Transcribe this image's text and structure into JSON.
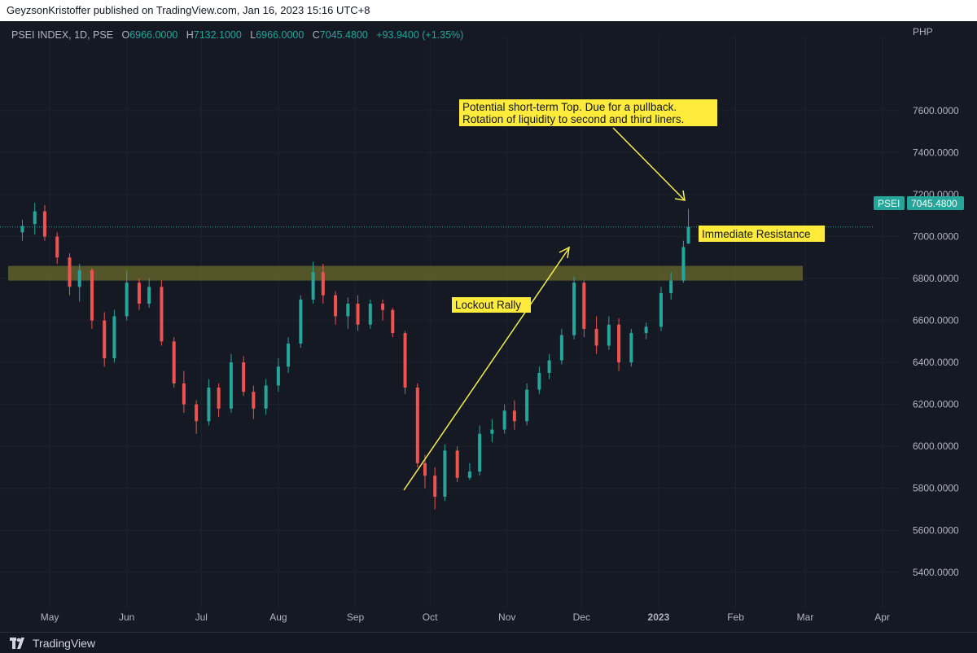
{
  "header": {
    "published_line": "GeyzsonKristoffer published on TradingView.com, Jan 16, 2023 15:16 UTC+8"
  },
  "symbol": {
    "name": "PSEI INDEX, 1D, PSE",
    "o_label": "O",
    "o_value": "6966.0000",
    "h_label": "H",
    "h_value": "7132.1000",
    "l_label": "L",
    "l_value": "6966.0000",
    "c_label": "C",
    "c_value": "7045.4800",
    "change": "+93.9400 (+1.35%)",
    "currency": "PHP"
  },
  "price_tag": {
    "ticker": "PSEI",
    "value": "7045.4800"
  },
  "annotations": {
    "top_note_line1": "Potential short-term Top. Due for a pullback.",
    "top_note_line2": "Rotation of liquidity to second and third liners.",
    "lockout": "Lockout Rally",
    "resistance": "Immediate Resistance"
  },
  "footer": {
    "brand": "TradingView"
  },
  "colors": {
    "up": "#26a69a",
    "down": "#ef5350",
    "zone": "#6b6a2c",
    "note_bg": "#ffeb3b",
    "arrow": "#f5f050",
    "grid": "#1e222d"
  },
  "chart_data": {
    "type": "candlestick",
    "title": "",
    "xlabel": "",
    "ylabel": "",
    "x_ticks": [
      "May",
      "Jun",
      "Jul",
      "Aug",
      "Sep",
      "Oct",
      "Nov",
      "Dec",
      "2023",
      "Feb",
      "Mar",
      "Apr"
    ],
    "y_ticks": [
      "7600.0000",
      "7400.0000",
      "7200.0000",
      "7000.0000",
      "6800.0000",
      "6600.0000",
      "6400.0000",
      "6200.0000",
      "6000.0000",
      "5800.0000",
      "5600.0000",
      "5400.0000"
    ],
    "ylim": [
      5310,
      7910
    ],
    "last_price": 7045.48,
    "resistance_zone": [
      6790,
      6860
    ],
    "grid": true,
    "series": [
      {
        "date": "2022-04-20",
        "o": 7020,
        "h": 7080,
        "l": 6980,
        "c": 7050
      },
      {
        "date": "2022-04-25",
        "o": 7060,
        "h": 7160,
        "l": 7010,
        "c": 7120
      },
      {
        "date": "2022-04-29",
        "o": 7120,
        "h": 7150,
        "l": 6980,
        "c": 7000
      },
      {
        "date": "2022-05-04",
        "o": 7000,
        "h": 7020,
        "l": 6870,
        "c": 6900
      },
      {
        "date": "2022-05-09",
        "o": 6900,
        "h": 6920,
        "l": 6720,
        "c": 6760
      },
      {
        "date": "2022-05-13",
        "o": 6760,
        "h": 6870,
        "l": 6690,
        "c": 6840
      },
      {
        "date": "2022-05-18",
        "o": 6840,
        "h": 6850,
        "l": 6560,
        "c": 6600
      },
      {
        "date": "2022-05-23",
        "o": 6600,
        "h": 6640,
        "l": 6380,
        "c": 6420
      },
      {
        "date": "2022-05-27",
        "o": 6420,
        "h": 6650,
        "l": 6400,
        "c": 6620
      },
      {
        "date": "2022-06-01",
        "o": 6620,
        "h": 6840,
        "l": 6600,
        "c": 6780
      },
      {
        "date": "2022-06-06",
        "o": 6780,
        "h": 6800,
        "l": 6650,
        "c": 6680
      },
      {
        "date": "2022-06-10",
        "o": 6680,
        "h": 6800,
        "l": 6660,
        "c": 6760
      },
      {
        "date": "2022-06-15",
        "o": 6760,
        "h": 6790,
        "l": 6480,
        "c": 6500
      },
      {
        "date": "2022-06-20",
        "o": 6500,
        "h": 6520,
        "l": 6280,
        "c": 6300
      },
      {
        "date": "2022-06-24",
        "o": 6300,
        "h": 6360,
        "l": 6160,
        "c": 6200
      },
      {
        "date": "2022-06-29",
        "o": 6200,
        "h": 6220,
        "l": 6060,
        "c": 6120
      },
      {
        "date": "2022-07-04",
        "o": 6120,
        "h": 6320,
        "l": 6100,
        "c": 6280
      },
      {
        "date": "2022-07-08",
        "o": 6280,
        "h": 6300,
        "l": 6140,
        "c": 6180
      },
      {
        "date": "2022-07-13",
        "o": 6180,
        "h": 6440,
        "l": 6160,
        "c": 6400
      },
      {
        "date": "2022-07-18",
        "o": 6400,
        "h": 6430,
        "l": 6240,
        "c": 6260
      },
      {
        "date": "2022-07-22",
        "o": 6260,
        "h": 6290,
        "l": 6130,
        "c": 6180
      },
      {
        "date": "2022-07-27",
        "o": 6180,
        "h": 6320,
        "l": 6150,
        "c": 6290
      },
      {
        "date": "2022-08-01",
        "o": 6290,
        "h": 6420,
        "l": 6260,
        "c": 6380
      },
      {
        "date": "2022-08-05",
        "o": 6380,
        "h": 6520,
        "l": 6350,
        "c": 6490
      },
      {
        "date": "2022-08-10",
        "o": 6490,
        "h": 6720,
        "l": 6470,
        "c": 6700
      },
      {
        "date": "2022-08-15",
        "o": 6700,
        "h": 6880,
        "l": 6680,
        "c": 6830
      },
      {
        "date": "2022-08-19",
        "o": 6830,
        "h": 6870,
        "l": 6680,
        "c": 6720
      },
      {
        "date": "2022-08-24",
        "o": 6720,
        "h": 6740,
        "l": 6580,
        "c": 6620
      },
      {
        "date": "2022-08-29",
        "o": 6620,
        "h": 6710,
        "l": 6560,
        "c": 6680
      },
      {
        "date": "2022-09-02",
        "o": 6680,
        "h": 6720,
        "l": 6550,
        "c": 6580
      },
      {
        "date": "2022-09-07",
        "o": 6580,
        "h": 6700,
        "l": 6560,
        "c": 6680
      },
      {
        "date": "2022-09-12",
        "o": 6680,
        "h": 6700,
        "l": 6600,
        "c": 6650
      },
      {
        "date": "2022-09-16",
        "o": 6650,
        "h": 6660,
        "l": 6520,
        "c": 6540
      },
      {
        "date": "2022-09-21",
        "o": 6540,
        "h": 6550,
        "l": 6250,
        "c": 6280
      },
      {
        "date": "2022-09-26",
        "o": 6280,
        "h": 6300,
        "l": 5900,
        "c": 5920
      },
      {
        "date": "2022-09-29",
        "o": 5920,
        "h": 5960,
        "l": 5800,
        "c": 5860
      },
      {
        "date": "2022-10-03",
        "o": 5860,
        "h": 5900,
        "l": 5700,
        "c": 5760
      },
      {
        "date": "2022-10-07",
        "o": 5760,
        "h": 6010,
        "l": 5740,
        "c": 5980
      },
      {
        "date": "2022-10-12",
        "o": 5980,
        "h": 6000,
        "l": 5830,
        "c": 5850
      },
      {
        "date": "2022-10-17",
        "o": 5850,
        "h": 5920,
        "l": 5840,
        "c": 5880
      },
      {
        "date": "2022-10-21",
        "o": 5880,
        "h": 6100,
        "l": 5860,
        "c": 6060
      },
      {
        "date": "2022-10-26",
        "o": 6060,
        "h": 6130,
        "l": 6020,
        "c": 6080
      },
      {
        "date": "2022-10-31",
        "o": 6080,
        "h": 6200,
        "l": 6060,
        "c": 6170
      },
      {
        "date": "2022-11-04",
        "o": 6170,
        "h": 6220,
        "l": 6080,
        "c": 6120
      },
      {
        "date": "2022-11-09",
        "o": 6120,
        "h": 6300,
        "l": 6100,
        "c": 6270
      },
      {
        "date": "2022-11-14",
        "o": 6270,
        "h": 6380,
        "l": 6250,
        "c": 6350
      },
      {
        "date": "2022-11-18",
        "o": 6350,
        "h": 6440,
        "l": 6320,
        "c": 6410
      },
      {
        "date": "2022-11-23",
        "o": 6410,
        "h": 6560,
        "l": 6390,
        "c": 6530
      },
      {
        "date": "2022-11-28",
        "o": 6530,
        "h": 6810,
        "l": 6510,
        "c": 6780
      },
      {
        "date": "2022-12-02",
        "o": 6780,
        "h": 6790,
        "l": 6520,
        "c": 6560
      },
      {
        "date": "2022-12-07",
        "o": 6560,
        "h": 6620,
        "l": 6440,
        "c": 6480
      },
      {
        "date": "2022-12-12",
        "o": 6480,
        "h": 6620,
        "l": 6460,
        "c": 6580
      },
      {
        "date": "2022-12-16",
        "o": 6580,
        "h": 6610,
        "l": 6360,
        "c": 6400
      },
      {
        "date": "2022-12-21",
        "o": 6400,
        "h": 6560,
        "l": 6380,
        "c": 6540
      },
      {
        "date": "2022-12-27",
        "o": 6540,
        "h": 6590,
        "l": 6510,
        "c": 6570
      },
      {
        "date": "2023-01-02",
        "o": 6570,
        "h": 6760,
        "l": 6550,
        "c": 6730
      },
      {
        "date": "2023-01-06",
        "o": 6730,
        "h": 6830,
        "l": 6700,
        "c": 6790
      },
      {
        "date": "2023-01-11",
        "o": 6790,
        "h": 6980,
        "l": 6780,
        "c": 6950
      },
      {
        "date": "2023-01-13",
        "o": 6966,
        "h": 7132.1,
        "l": 6966,
        "c": 7045.48
      }
    ]
  }
}
